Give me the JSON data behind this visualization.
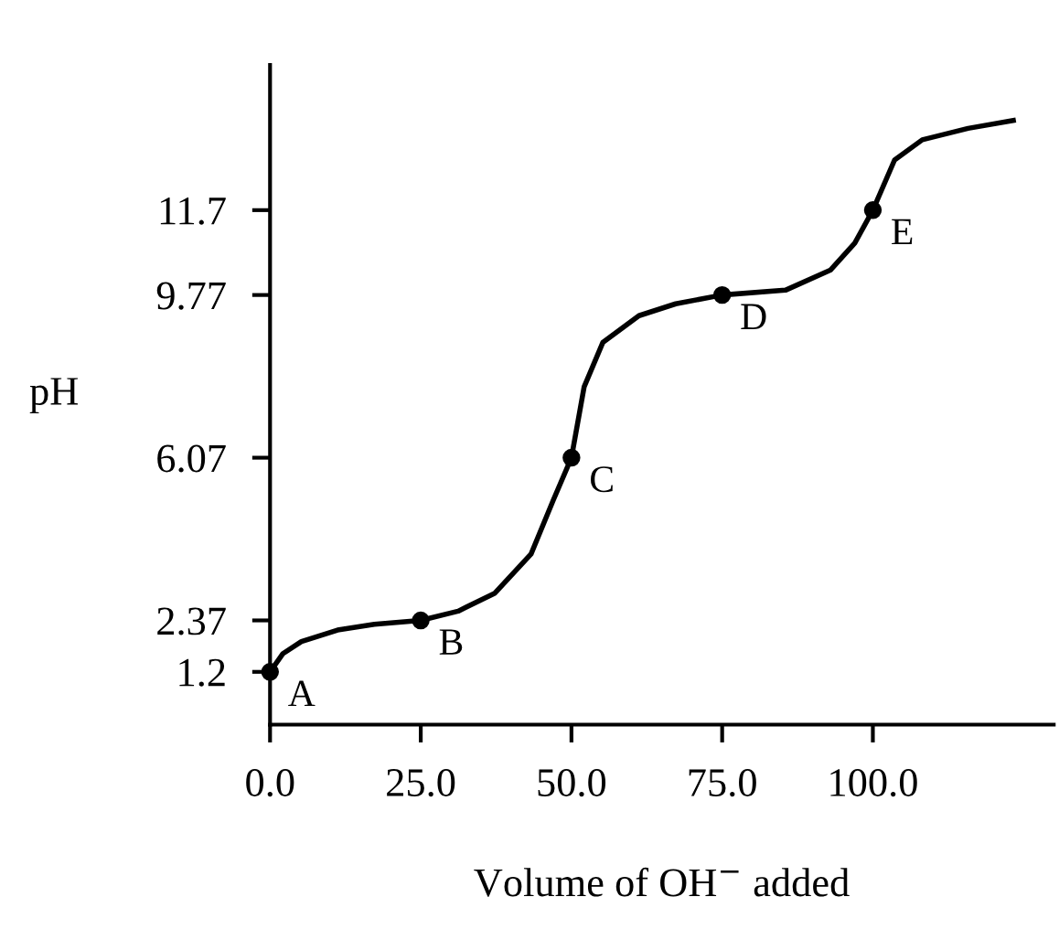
{
  "chart_data": {
    "type": "line",
    "xlabel": "Volume of OH$^{−}$ added",
    "ylabel": "pH",
    "xlim": [
      0,
      130
    ],
    "ylim": [
      0,
      15
    ],
    "xticks": [
      {
        "value": 0,
        "label": "0.0"
      },
      {
        "value": 25,
        "label": "25.0"
      },
      {
        "value": 50,
        "label": "50.0"
      },
      {
        "value": 75,
        "label": "75.0"
      },
      {
        "value": 100,
        "label": "100.0"
      }
    ],
    "yticks": [
      1.2,
      2.37,
      6.07,
      9.77,
      11.7
    ],
    "grid": false,
    "legend": false,
    "series": [
      {
        "color": "#000000",
        "marker": "none",
        "x": [
          0,
          2.1,
          5.2,
          11.2,
          17.3,
          25,
          31.2,
          37.3,
          43.3,
          47,
          50,
          52.1,
          55.2,
          61.2,
          67.3,
          75,
          85.5,
          93,
          97,
          100,
          103.6,
          108.2,
          115.8,
          123.3
        ],
        "values": [
          1.2,
          1.61,
          1.89,
          2.15,
          2.28,
          2.37,
          2.58,
          2.99,
          3.88,
          5.11,
          6.07,
          7.68,
          8.69,
          9.3,
          9.57,
          9.77,
          9.88,
          10.34,
          10.95,
          11.7,
          12.84,
          13.3,
          13.56,
          13.74
        ]
      },
      {
        "type": "scatter",
        "color": "#000000",
        "marker": "circle",
        "x": [
          0,
          25,
          50,
          75,
          100
        ],
        "values": [
          1.2,
          2.37,
          6.07,
          9.77,
          11.7
        ]
      }
    ],
    "annotations": [
      {
        "text": "A",
        "x": 0,
        "y": 1.2
      },
      {
        "text": "B",
        "x": 25,
        "y": 2.37
      },
      {
        "text": "C",
        "x": 50,
        "y": 6.07
      },
      {
        "text": "D",
        "x": 75,
        "y": 9.77
      },
      {
        "text": "E",
        "x": 100,
        "y": 11.7
      }
    ]
  }
}
